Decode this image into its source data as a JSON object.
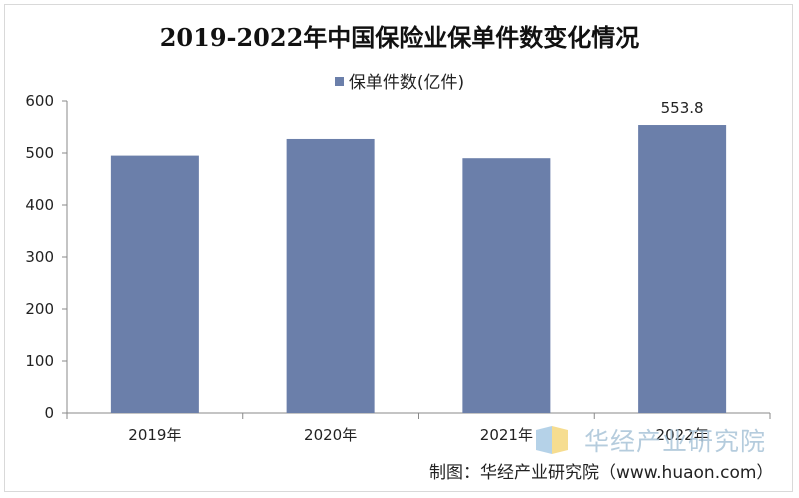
{
  "title": "2019-2022年中国保险业保单件数变化情况",
  "chart_data": {
    "type": "bar",
    "title": "2019-2022年中国保险业保单件数变化情况",
    "categories": [
      "2019年",
      "2020年",
      "2021年",
      "2022年"
    ],
    "series": [
      {
        "name": "保单件数(亿件)",
        "values": [
          495,
          527,
          490,
          553.8
        ]
      }
    ],
    "data_labels": [
      "",
      "",
      "",
      "553.8"
    ],
    "ylim": [
      0,
      600
    ],
    "yticks": [
      0,
      100,
      200,
      300,
      400,
      500,
      600
    ],
    "legend_position": "top-center",
    "grid": false,
    "colors": {
      "bar": "#6b7faa"
    }
  },
  "watermark": "华经产业研究院",
  "source": "制图：华经产业研究院（www.huaon.com）"
}
